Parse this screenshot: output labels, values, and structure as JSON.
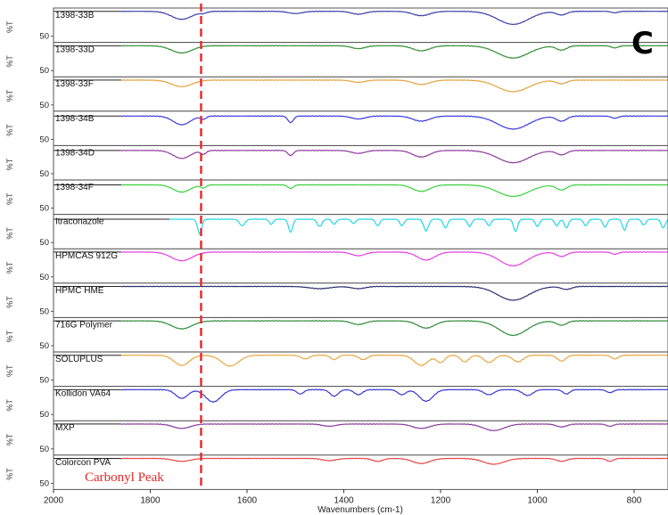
{
  "figure_letter": "C",
  "chart_data": {
    "type": "line",
    "title": "",
    "xlabel": "Wavenumbers (cm-1)",
    "ylabel": "%T",
    "xlim": [
      2000,
      730
    ],
    "x_reversed": true,
    "xticks": [
      2000,
      1800,
      1600,
      1400,
      1200,
      1000,
      800
    ],
    "panel_ytick_label": "50",
    "annotation": {
      "text": "Carbonyl Peak",
      "x": 1695,
      "style": "red dashed vertical line"
    },
    "series": [
      {
        "name": "1398-33B",
        "color": "#3b3ba6",
        "baseline": 0.05,
        "start": 1860,
        "features": [
          [
            1735,
            30,
            0.55
          ],
          [
            1690,
            10,
            0.1
          ],
          [
            1500,
            20,
            0.15
          ],
          [
            1370,
            20,
            0.2
          ],
          [
            1240,
            25,
            0.3
          ],
          [
            1050,
            45,
            0.9
          ],
          [
            950,
            15,
            0.25
          ],
          [
            840,
            10,
            0.1
          ]
        ]
      },
      {
        "name": "1398-33D",
        "color": "#2f8f2f",
        "baseline": 0.05,
        "start": 1860,
        "features": [
          [
            1735,
            30,
            0.5
          ],
          [
            1370,
            20,
            0.2
          ],
          [
            1240,
            25,
            0.35
          ],
          [
            1050,
            45,
            0.85
          ],
          [
            950,
            15,
            0.3
          ],
          [
            840,
            10,
            0.15
          ]
        ]
      },
      {
        "name": "1398-33F",
        "color": "#e3a23e",
        "baseline": 0.05,
        "start": 1860,
        "features": [
          [
            1735,
            30,
            0.45
          ],
          [
            1370,
            20,
            0.15
          ],
          [
            1240,
            25,
            0.3
          ],
          [
            1050,
            45,
            0.8
          ],
          [
            950,
            15,
            0.25
          ]
        ]
      },
      {
        "name": "1398-34B",
        "color": "#3a3ae0",
        "baseline": 0.1,
        "start": 1860,
        "features": [
          [
            1735,
            25,
            0.6
          ],
          [
            1690,
            8,
            0.2
          ],
          [
            1510,
            8,
            0.45
          ],
          [
            1370,
            20,
            0.2
          ],
          [
            1240,
            25,
            0.35
          ],
          [
            1050,
            45,
            0.9
          ],
          [
            950,
            15,
            0.35
          ],
          [
            840,
            10,
            0.15
          ]
        ]
      },
      {
        "name": "1398-34D",
        "color": "#8e3a9e",
        "baseline": 0.1,
        "start": 1860,
        "features": [
          [
            1735,
            25,
            0.55
          ],
          [
            1690,
            8,
            0.25
          ],
          [
            1510,
            8,
            0.35
          ],
          [
            1370,
            20,
            0.2
          ],
          [
            1240,
            25,
            0.45
          ],
          [
            1050,
            45,
            0.85
          ],
          [
            950,
            15,
            0.3
          ]
        ]
      },
      {
        "name": "1398-34F",
        "color": "#3ad13a",
        "baseline": 0.1,
        "start": 1860,
        "features": [
          [
            1735,
            25,
            0.5
          ],
          [
            1690,
            8,
            0.2
          ],
          [
            1510,
            8,
            0.25
          ],
          [
            1240,
            25,
            0.45
          ],
          [
            1050,
            45,
            0.8
          ],
          [
            950,
            15,
            0.35
          ]
        ]
      },
      {
        "name": "Itraconazole",
        "color": "#20d8e6",
        "baseline": 0.1,
        "start": 1760,
        "features": [
          [
            1698,
            6,
            1.0
          ],
          [
            1610,
            8,
            0.45
          ],
          [
            1550,
            6,
            0.35
          ],
          [
            1510,
            6,
            0.9
          ],
          [
            1450,
            7,
            0.5
          ],
          [
            1420,
            6,
            0.35
          ],
          [
            1380,
            6,
            0.3
          ],
          [
            1330,
            6,
            0.45
          ],
          [
            1280,
            6,
            0.45
          ],
          [
            1230,
            7,
            0.8
          ],
          [
            1190,
            6,
            0.6
          ],
          [
            1140,
            6,
            0.5
          ],
          [
            1100,
            6,
            0.45
          ],
          [
            1045,
            6,
            0.85
          ],
          [
            1000,
            6,
            0.5
          ],
          [
            960,
            6,
            0.45
          ],
          [
            940,
            6,
            0.6
          ],
          [
            900,
            6,
            0.45
          ],
          [
            860,
            6,
            0.55
          ],
          [
            820,
            6,
            0.75
          ],
          [
            780,
            6,
            0.4
          ],
          [
            740,
            6,
            0.6
          ]
        ]
      },
      {
        "name": "HPMCAS 912G",
        "color": "#e63fe3",
        "baseline": 0.05,
        "start": 1860,
        "features": [
          [
            1735,
            30,
            0.6
          ],
          [
            1370,
            20,
            0.25
          ],
          [
            1230,
            25,
            0.55
          ],
          [
            1050,
            40,
            0.95
          ],
          [
            950,
            15,
            0.3
          ],
          [
            840,
            10,
            0.15
          ]
        ]
      },
      {
        "name": "HPMC HME",
        "color": "#2a2f6e",
        "baseline": 0.05,
        "start": 1860,
        "features": [
          [
            1450,
            30,
            0.15
          ],
          [
            1370,
            20,
            0.15
          ],
          [
            1050,
            45,
            0.95
          ],
          [
            940,
            15,
            0.2
          ]
        ]
      },
      {
        "name": "716G Polymer",
        "color": "#2e8b3a",
        "baseline": 0.05,
        "start": 1860,
        "features": [
          [
            1735,
            30,
            0.55
          ],
          [
            1370,
            20,
            0.25
          ],
          [
            1230,
            25,
            0.5
          ],
          [
            1050,
            40,
            1.0
          ],
          [
            950,
            15,
            0.3
          ]
        ]
      },
      {
        "name": "SOLUPLUS",
        "color": "#e8a640",
        "baseline": 0.05,
        "start": 1860,
        "features": [
          [
            1735,
            22,
            0.7
          ],
          [
            1635,
            25,
            0.75
          ],
          [
            1480,
            12,
            0.25
          ],
          [
            1420,
            10,
            0.3
          ],
          [
            1360,
            12,
            0.3
          ],
          [
            1240,
            20,
            0.7
          ],
          [
            1200,
            12,
            0.5
          ],
          [
            1150,
            12,
            0.45
          ],
          [
            1100,
            15,
            0.5
          ],
          [
            1040,
            15,
            0.45
          ],
          [
            950,
            12,
            0.4
          ],
          [
            840,
            10,
            0.25
          ]
        ]
      },
      {
        "name": "Kollidon VA64",
        "color": "#3535d6",
        "baseline": 0.05,
        "start": 1860,
        "features": [
          [
            1735,
            18,
            0.6
          ],
          [
            1670,
            22,
            0.85
          ],
          [
            1490,
            10,
            0.3
          ],
          [
            1420,
            12,
            0.45
          ],
          [
            1370,
            12,
            0.35
          ],
          [
            1280,
            12,
            0.35
          ],
          [
            1230,
            20,
            0.8
          ],
          [
            1100,
            15,
            0.35
          ],
          [
            1020,
            15,
            0.4
          ],
          [
            940,
            10,
            0.3
          ],
          [
            850,
            10,
            0.2
          ]
        ]
      },
      {
        "name": "MXP",
        "color": "#8a3a9a",
        "baseline": 0.05,
        "start": 1860,
        "features": [
          [
            1735,
            25,
            0.3
          ],
          [
            1430,
            20,
            0.15
          ],
          [
            1240,
            25,
            0.3
          ],
          [
            1090,
            30,
            0.45
          ],
          [
            950,
            15,
            0.2
          ],
          [
            850,
            10,
            0.15
          ]
        ]
      },
      {
        "name": "Colorcon PVA",
        "color": "#e84545",
        "baseline": 0.05,
        "start": 1860,
        "features": [
          [
            1735,
            25,
            0.2
          ],
          [
            1430,
            20,
            0.15
          ],
          [
            1330,
            15,
            0.2
          ],
          [
            1240,
            25,
            0.35
          ],
          [
            1090,
            30,
            0.4
          ],
          [
            950,
            15,
            0.2
          ],
          [
            850,
            10,
            0.2
          ]
        ]
      }
    ]
  }
}
